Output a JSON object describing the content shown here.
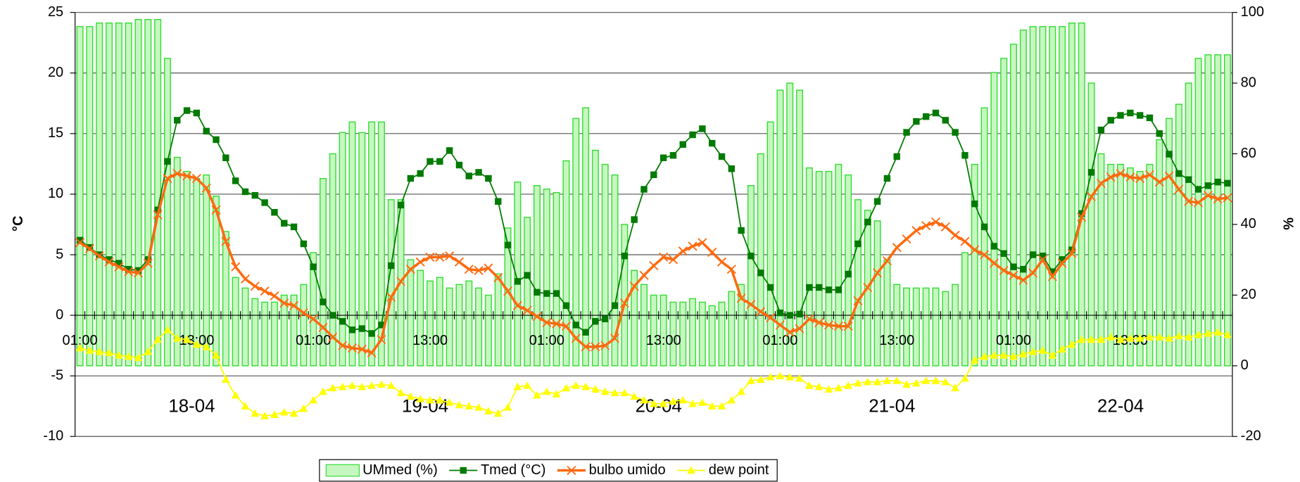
{
  "chart_data": {
    "type": "combo",
    "y_label": "°C",
    "y2_label": "%",
    "ylim": [
      -10,
      25
    ],
    "yticks": [
      -10,
      -5,
      0,
      5,
      10,
      15,
      20,
      25
    ],
    "y2lim": [
      -20,
      100
    ],
    "y2ticks": [
      -20,
      0,
      20,
      40,
      60,
      80,
      100
    ],
    "grid": true,
    "legend": "bottom",
    "categories": [
      "01:00",
      null,
      null,
      null,
      null,
      null,
      null,
      null,
      null,
      null,
      null,
      null,
      "13:00",
      null,
      null,
      null,
      null,
      null,
      null,
      null,
      null,
      null,
      null,
      null,
      "01:00",
      null,
      null,
      null,
      null,
      null,
      null,
      null,
      null,
      null,
      null,
      null,
      "13:00",
      null,
      null,
      null,
      null,
      null,
      null,
      null,
      null,
      null,
      null,
      null,
      "01:00",
      null,
      null,
      null,
      null,
      null,
      null,
      null,
      null,
      null,
      null,
      null,
      "13:00",
      null,
      null,
      null,
      null,
      null,
      null,
      null,
      null,
      null,
      null,
      null,
      "01:00",
      null,
      null,
      null,
      null,
      null,
      null,
      null,
      null,
      null,
      null,
      null,
      "13:00",
      null,
      null,
      null,
      null,
      null,
      null,
      null,
      null,
      null,
      null,
      null,
      "01:00",
      null,
      null,
      null,
      null,
      null,
      null,
      null,
      null,
      null,
      null,
      null,
      "13:00",
      null,
      null,
      null,
      null,
      null,
      null,
      null,
      null,
      null,
      null
    ],
    "dates": [
      "18-04",
      "19-04",
      "20-04",
      "21-04",
      "22-04"
    ],
    "series": [
      {
        "name": "UMmed (%)",
        "type": "bar",
        "axis": "y2",
        "color": "#c6f7c0",
        "edge_color": "#33dd33",
        "values": [
          96,
          96,
          97,
          97,
          97,
          97,
          98,
          98,
          98,
          87,
          59,
          55,
          53,
          54,
          48,
          38,
          25,
          22,
          19,
          18,
          18,
          20,
          20,
          23,
          32,
          53,
          60,
          66,
          69,
          66,
          69,
          69,
          47,
          47,
          30,
          27,
          24,
          25,
          22,
          23,
          24,
          22,
          20,
          26,
          39,
          52,
          42,
          51,
          50,
          49,
          58,
          70,
          73,
          61,
          57,
          54,
          40,
          27,
          23,
          20,
          20,
          18,
          18,
          19,
          18,
          17,
          18,
          21,
          23,
          51,
          60,
          69,
          78,
          80,
          78,
          56,
          55,
          55,
          57,
          54,
          47,
          44,
          41,
          30,
          23,
          22,
          22,
          22,
          22,
          21,
          23,
          32,
          57,
          73,
          83,
          87,
          91,
          95,
          96,
          96,
          96,
          96,
          97,
          97,
          80,
          60,
          57,
          57,
          56,
          55,
          57,
          64,
          70,
          74,
          80,
          87,
          88,
          88,
          88
        ]
      },
      {
        "name": "Tmed (°C)",
        "type": "line",
        "marker": "square",
        "color": "#007a00",
        "values": [
          6.2,
          5.6,
          5.0,
          4.6,
          4.3,
          3.8,
          3.7,
          4.6,
          8.7,
          12.7,
          16.1,
          16.9,
          16.7,
          15.2,
          14.5,
          13.0,
          11.1,
          10.2,
          9.9,
          9.3,
          8.5,
          7.6,
          7.3,
          5.9,
          4.0,
          1.1,
          0.0,
          -0.5,
          -1.2,
          -1.1,
          -1.5,
          -0.8,
          4.1,
          9.1,
          11.3,
          11.7,
          12.7,
          12.7,
          13.6,
          12.4,
          11.5,
          11.8,
          11.3,
          9.4,
          5.8,
          2.8,
          3.3,
          1.9,
          1.8,
          1.8,
          0.8,
          -0.8,
          -1.4,
          -0.5,
          -0.3,
          0.8,
          4.9,
          7.9,
          10.4,
          11.6,
          13.0,
          13.2,
          14.1,
          14.9,
          15.4,
          14.2,
          13.1,
          12.1,
          7.0,
          4.9,
          3.5,
          2.3,
          0.2,
          0.0,
          0.1,
          2.3,
          2.3,
          2.1,
          2.1,
          3.4,
          5.9,
          7.7,
          9.4,
          11.3,
          13.1,
          15.1,
          16.0,
          16.4,
          16.7,
          16.1,
          15.1,
          13.2,
          9.2,
          7.3,
          5.7,
          5.1,
          4.0,
          3.8,
          5.0,
          4.9,
          3.6,
          4.6,
          5.4,
          8.4,
          11.8,
          15.3,
          16.1,
          16.5,
          16.7,
          16.5,
          16.3,
          15.0,
          13.3,
          11.7,
          11.2,
          10.4,
          10.7,
          11.0,
          10.9
        ]
      },
      {
        "name": "bulbo umido",
        "type": "line",
        "marker": "x",
        "color": "#ff6a10",
        "values": [
          6.0,
          5.5,
          4.9,
          4.4,
          4.0,
          3.6,
          3.5,
          4.3,
          8.3,
          11.3,
          11.7,
          11.5,
          11.3,
          10.5,
          8.7,
          6.1,
          4.0,
          3.0,
          2.4,
          2.0,
          1.6,
          1.0,
          0.8,
          0.2,
          -0.3,
          -1.0,
          -1.8,
          -2.5,
          -2.7,
          -2.8,
          -3.1,
          -2.0,
          1.5,
          2.8,
          3.8,
          4.4,
          4.8,
          4.8,
          4.9,
          4.4,
          3.8,
          3.7,
          3.9,
          3.1,
          2.0,
          0.8,
          0.4,
          -0.1,
          -0.6,
          -0.7,
          -0.9,
          -1.9,
          -2.6,
          -2.6,
          -2.5,
          -1.9,
          1.0,
          2.4,
          3.3,
          4.1,
          4.8,
          4.6,
          5.3,
          5.7,
          6.0,
          5.2,
          4.4,
          3.8,
          1.4,
          0.9,
          0.3,
          -0.2,
          -0.8,
          -1.4,
          -1.1,
          -0.3,
          -0.6,
          -0.8,
          -0.9,
          -0.9,
          1.2,
          2.3,
          3.5,
          4.5,
          5.6,
          6.3,
          7.0,
          7.4,
          7.7,
          7.3,
          6.6,
          6.1,
          5.4,
          5.0,
          4.3,
          3.7,
          3.3,
          2.9,
          3.5,
          4.6,
          3.2,
          4.3,
          5.1,
          8.1,
          9.8,
          10.9,
          11.4,
          11.7,
          11.4,
          11.3,
          11.6,
          11.0,
          11.5,
          10.4,
          9.4,
          9.3,
          9.9,
          9.6,
          9.7
        ]
      },
      {
        "name": "dew point",
        "type": "line",
        "marker": "triangle",
        "color": "#ffff00",
        "values": [
          -2.7,
          -2.9,
          -3.0,
          -3.1,
          -3.3,
          -3.4,
          -3.5,
          -3.0,
          -2.0,
          -1.2,
          -1.9,
          -2.0,
          -2.4,
          -2.6,
          -3.3,
          -5.3,
          -6.6,
          -7.5,
          -8.1,
          -8.3,
          -8.2,
          -8.0,
          -8.1,
          -7.7,
          -7.0,
          -6.3,
          -6.0,
          -5.9,
          -5.8,
          -5.9,
          -5.8,
          -5.7,
          -5.8,
          -6.4,
          -6.7,
          -6.9,
          -7.0,
          -7.0,
          -7.2,
          -7.4,
          -7.5,
          -7.6,
          -7.9,
          -8.1,
          -7.6,
          -5.9,
          -5.8,
          -6.6,
          -6.3,
          -6.5,
          -6.0,
          -5.8,
          -5.9,
          -6.1,
          -6.3,
          -6.4,
          -6.4,
          -6.7,
          -7.0,
          -7.3,
          -7.3,
          -7.1,
          -7.0,
          -7.3,
          -7.2,
          -7.5,
          -7.5,
          -7.0,
          -6.3,
          -5.4,
          -5.3,
          -5.1,
          -5.0,
          -5.1,
          -5.2,
          -5.8,
          -5.9,
          -6.1,
          -6.0,
          -5.8,
          -5.6,
          -5.5,
          -5.5,
          -5.4,
          -5.4,
          -5.7,
          -5.6,
          -5.4,
          -5.4,
          -5.5,
          -6.0,
          -5.2,
          -3.7,
          -3.4,
          -3.3,
          -3.3,
          -3.4,
          -3.2,
          -3.0,
          -2.9,
          -3.3,
          -2.8,
          -2.4,
          -2.0,
          -2.0,
          -2.0,
          -1.8,
          -2.0,
          -1.9,
          -1.9,
          -1.8,
          -1.8,
          -1.9,
          -1.7,
          -1.8,
          -1.6,
          -1.5,
          -1.4,
          -1.6
        ]
      }
    ]
  }
}
